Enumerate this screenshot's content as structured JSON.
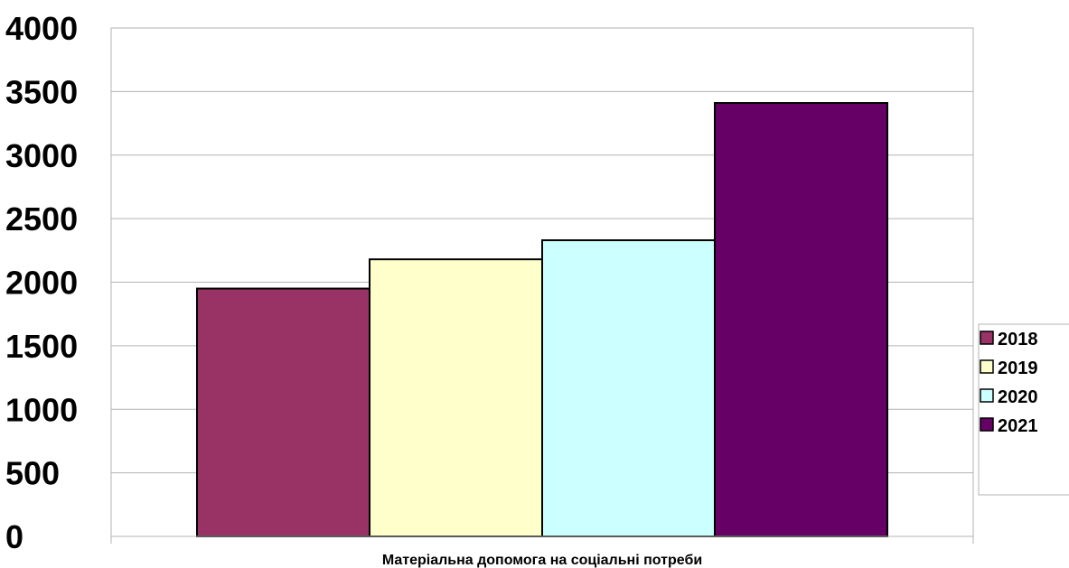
{
  "chart_data": {
    "type": "bar",
    "title": "",
    "xlabel": "",
    "ylabel": "",
    "categories": [
      "Матеріальна допомога на соціальні потреби"
    ],
    "series": [
      {
        "name": "2018",
        "values": [
          1950
        ],
        "color": "#993366"
      },
      {
        "name": "2019",
        "values": [
          2180
        ],
        "color": "#FFFFCC"
      },
      {
        "name": "2020",
        "values": [
          2330
        ],
        "color": "#CCFFFF"
      },
      {
        "name": "2021",
        "values": [
          3410
        ],
        "color": "#660066"
      }
    ],
    "ylim": [
      0,
      4000
    ],
    "yticks": [
      "0",
      "500",
      "1000",
      "1500",
      "2000",
      "2500",
      "3000",
      "3500",
      "4000"
    ],
    "grid": true,
    "legend_position": "right"
  }
}
